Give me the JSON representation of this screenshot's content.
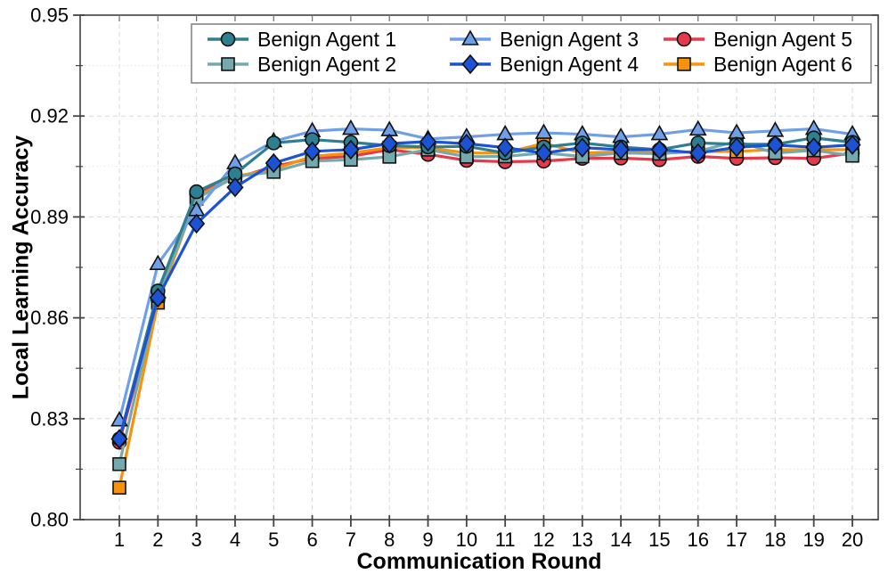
{
  "chart_data": {
    "type": "line",
    "title": "",
    "xlabel": "Communication Round",
    "ylabel": "Local Learning Accuracy",
    "x": [
      1,
      2,
      3,
      4,
      5,
      6,
      7,
      8,
      9,
      10,
      11,
      12,
      13,
      14,
      15,
      16,
      17,
      18,
      19,
      20
    ],
    "xlim": [
      0,
      21
    ],
    "ylim": [
      0.8,
      0.95
    ],
    "yticks": [
      0.8,
      0.83,
      0.86,
      0.89,
      0.92,
      0.95
    ],
    "ytick_labels": [
      "0.80",
      "0.83",
      "0.86",
      "0.89",
      "0.92",
      "0.95"
    ],
    "xtick_labels": [
      "1",
      "2",
      "3",
      "4",
      "5",
      "6",
      "7",
      "8",
      "9",
      "10",
      "11",
      "12",
      "13",
      "14",
      "15",
      "16",
      "17",
      "18",
      "19",
      "20"
    ],
    "grid": true,
    "legend_position": "top-inside",
    "series": [
      {
        "name": "Benign Agent 1",
        "color": "#2E7F90",
        "marker": "circle",
        "values": [
          0.824,
          0.868,
          0.8975,
          0.9028,
          0.912,
          0.913,
          0.9122,
          0.9112,
          0.9108,
          0.911,
          0.909,
          0.9108,
          0.912,
          0.9108,
          0.91,
          0.912,
          0.9116,
          0.9116,
          0.9135,
          0.9122
        ]
      },
      {
        "name": "Benign Agent 2",
        "color": "#74A9AD",
        "marker": "square",
        "values": [
          0.8165,
          0.8665,
          0.8954,
          0.902,
          0.9034,
          0.9066,
          0.907,
          0.9079,
          0.91,
          0.9079,
          0.908,
          0.909,
          0.908,
          0.909,
          0.9088,
          0.9095,
          0.9125,
          0.909,
          0.9098,
          0.9082
        ]
      },
      {
        "name": "Benign Agent 3",
        "color": "#6F9FE8",
        "marker": "triangle",
        "values": [
          0.8295,
          0.876,
          0.892,
          0.906,
          0.9125,
          0.9155,
          0.9162,
          0.9158,
          0.9132,
          0.9138,
          0.9146,
          0.915,
          0.9146,
          0.9138,
          0.9146,
          0.916,
          0.915,
          0.9156,
          0.9162,
          0.9146
        ]
      },
      {
        "name": "Benign Agent 4",
        "color": "#1C52D4",
        "marker": "diamond",
        "values": [
          0.824,
          0.866,
          0.888,
          0.8988,
          0.906,
          0.9095,
          0.91,
          0.9118,
          0.9124,
          0.9118,
          0.9106,
          0.909,
          0.9106,
          0.91,
          0.91,
          0.909,
          0.9107,
          0.9114,
          0.9107,
          0.9114
        ]
      },
      {
        "name": "Benign Agent 5",
        "color": "#E8394B",
        "marker": "circle",
        "values": [
          0.823,
          0.8655,
          0.897,
          0.9015,
          0.905,
          0.9074,
          0.908,
          0.91,
          0.9086,
          0.9068,
          0.9064,
          0.9066,
          0.9074,
          0.9075,
          0.907,
          0.908,
          0.9074,
          0.9076,
          0.9074,
          0.909
        ]
      },
      {
        "name": "Benign Agent 6",
        "color": "#F7930B",
        "marker": "square",
        "values": [
          0.8095,
          0.8645,
          0.896,
          0.902,
          0.9042,
          0.908,
          0.909,
          0.9106,
          0.9106,
          0.909,
          0.909,
          0.9119,
          0.909,
          0.9094,
          0.909,
          0.9094,
          0.9095,
          0.91,
          0.91,
          0.91
        ]
      }
    ],
    "style": {
      "marker_edge_color": "#111111",
      "spine_color": "#555555",
      "tick_color": "#444444",
      "grid_major_color": "#d8d8d8",
      "grid_minor_color": "#e7e7e7",
      "legend_border_color": "#7f7f7f",
      "background_color": "#ffffff"
    }
  }
}
